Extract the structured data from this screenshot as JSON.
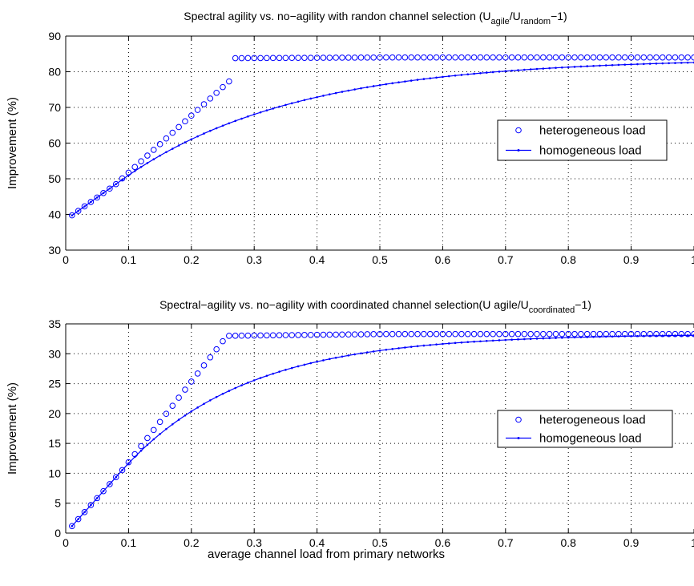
{
  "chart_data": [
    {
      "type": "line",
      "title": {
        "main": "Spectral agility vs. no−agility with randon channel selection (U",
        "sub1": "agile",
        "mid": "/U",
        "sub2": "random",
        "tail": "−1)"
      },
      "xlabel": "",
      "ylabel": "Improvement (%)",
      "xlim": [
        0,
        1
      ],
      "ylim": [
        30,
        90
      ],
      "xticks": [
        0,
        0.1,
        0.2,
        0.3,
        0.4,
        0.5,
        0.6,
        0.7,
        0.8,
        0.9,
        1
      ],
      "xtick_labels": [
        "0",
        "0.1",
        "0.2",
        "0.3",
        "0.4",
        "0.5",
        "0.6",
        "0.7",
        "0.8",
        "0.9",
        "1"
      ],
      "yticks": [
        30,
        40,
        50,
        60,
        70,
        80,
        90
      ],
      "ytick_labels": [
        "30",
        "40",
        "50",
        "60",
        "70",
        "80",
        "90"
      ],
      "grid": true,
      "legend_position": "right",
      "series": [
        {
          "name": "heterogeneous load",
          "style": "markers-circle",
          "color": "#0000ff",
          "x_start": 0.01,
          "x_step": 0.01,
          "x_end": 1.0,
          "model": {
            "type": "piecewise-sat",
            "y0": 38.5,
            "slope_low": 125,
            "x_break": 0.08,
            "y_break": 48.5,
            "slope_high": 160,
            "x_sat": 0.26,
            "y_sat": 83.8,
            "y_sat_end": 84.0
          }
        },
        {
          "name": "homogeneous load",
          "style": "line-dot",
          "color": "#0000ff",
          "x_start": 0.01,
          "x_step": 0.01,
          "x_end": 1.0,
          "model": {
            "type": "smooth-sat",
            "y0": 38.5,
            "y_inf": 83.8,
            "slope": 125,
            "x_knee": 0.09,
            "rate": 12.5
          }
        }
      ]
    },
    {
      "type": "line",
      "title": {
        "main": "Spectral−agility vs. no−agility with coordinated channel selection(U agile/U",
        "sub1": "",
        "mid": "",
        "sub2": "coordinated",
        "tail": "−1)"
      },
      "xlabel": "average channel load from primary networks",
      "ylabel": "Improvement (%)",
      "xlim": [
        0,
        1
      ],
      "ylim": [
        0,
        35
      ],
      "xticks": [
        0,
        0.1,
        0.2,
        0.3,
        0.4,
        0.5,
        0.6,
        0.7,
        0.8,
        0.9,
        1
      ],
      "xtick_labels": [
        "0",
        "0.1",
        "0.2",
        "0.3",
        "0.4",
        "0.5",
        "0.6",
        "0.7",
        "0.8",
        "0.9",
        "1"
      ],
      "yticks": [
        0,
        5,
        10,
        15,
        20,
        25,
        30,
        35
      ],
      "ytick_labels": [
        "0",
        "5",
        "10",
        "15",
        "20",
        "25",
        "30",
        "35"
      ],
      "grid": true,
      "legend_position": "right",
      "series": [
        {
          "name": "heterogeneous load",
          "style": "markers-circle",
          "color": "#0000ff",
          "x_start": 0.01,
          "x_step": 0.01,
          "x_end": 1.0,
          "model": {
            "type": "piecewise-sat",
            "y0": 0.0,
            "slope_low": 117,
            "x_break": 0.09,
            "y_break": 10.5,
            "slope_high": 135,
            "x_sat": 0.26,
            "y_sat": 33.0,
            "y_sat_end": 33.3
          }
        },
        {
          "name": "homogeneous load",
          "style": "line-dot",
          "color": "#0000ff",
          "x_start": 0.01,
          "x_step": 0.01,
          "x_end": 1.0,
          "model": {
            "type": "smooth-sat",
            "y0": 0.0,
            "y_inf": 33.3,
            "slope": 117,
            "x_knee": 0.09,
            "rate": 10.5
          }
        }
      ]
    }
  ]
}
